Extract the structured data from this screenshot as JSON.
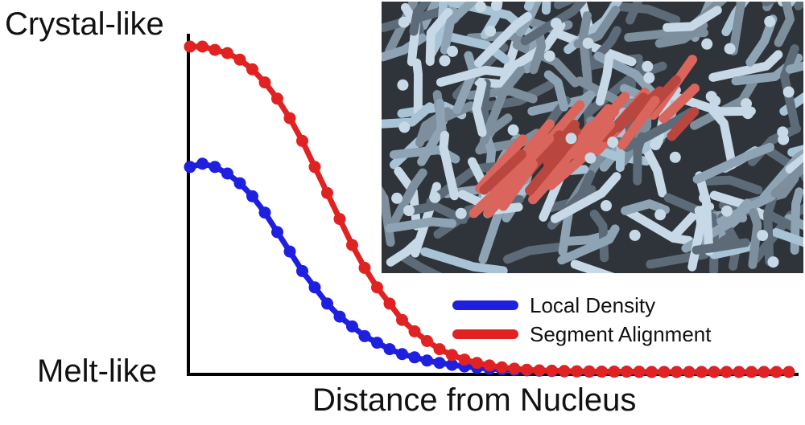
{
  "chart_data": {
    "type": "line",
    "title": "",
    "xlabel": "Distance from Nucleus",
    "ylabel": "",
    "y_tick_labels": {
      "top": "Crystal-like",
      "bottom": "Melt-like"
    },
    "xlim": [
      0,
      48
    ],
    "ylim": [
      0,
      1
    ],
    "grid": false,
    "legend_placement": "right",
    "x": [
      0,
      1,
      2,
      3,
      4,
      5,
      6,
      7,
      8,
      9,
      10,
      11,
      12,
      13,
      14,
      15,
      16,
      17,
      18,
      19,
      20,
      21,
      22,
      23,
      24,
      25,
      26,
      27,
      28,
      29,
      30,
      31,
      32,
      33,
      34,
      35,
      36,
      37,
      38,
      39,
      40,
      41,
      42,
      43,
      44,
      45,
      46,
      47,
      48
    ],
    "series": [
      {
        "name": "Local Density",
        "color": "#1f1fe0",
        "values": [
          0.63,
          0.64,
          0.63,
          0.61,
          0.58,
          0.54,
          0.49,
          0.43,
          0.37,
          0.31,
          0.26,
          0.21,
          0.17,
          0.14,
          0.11,
          0.09,
          0.07,
          0.055,
          0.045,
          0.035,
          0.028,
          0.022,
          0.017,
          0.013,
          0.01,
          0.008,
          0.006,
          0.005,
          0.004,
          0.003,
          0.002,
          0.002,
          0.001,
          0.001,
          0.001,
          0.001,
          0.0,
          0.0,
          0.0,
          0.0,
          0.0,
          0.0,
          0.0,
          0.0,
          0.0,
          0.0,
          0.0,
          0.0,
          0.0
        ]
      },
      {
        "name": "Segment Alignment",
        "color": "#e02222",
        "values": [
          1.0,
          1.0,
          0.99,
          0.98,
          0.96,
          0.93,
          0.89,
          0.84,
          0.78,
          0.71,
          0.63,
          0.55,
          0.47,
          0.39,
          0.32,
          0.26,
          0.21,
          0.16,
          0.125,
          0.095,
          0.07,
          0.052,
          0.038,
          0.028,
          0.02,
          0.014,
          0.01,
          0.007,
          0.005,
          0.004,
          0.003,
          0.002,
          0.002,
          0.001,
          0.001,
          0.001,
          0.001,
          0.0,
          0.0,
          0.0,
          0.0,
          0.0,
          0.0,
          0.0,
          0.0,
          0.0,
          0.0,
          0.0,
          0.0
        ]
      }
    ]
  },
  "inset": {
    "description_icon": "polymer-snapshot-image",
    "colors": {
      "background": "#2e343a",
      "melt_chains": "#a9c3d6",
      "crystal_chains": "#d9655c"
    }
  }
}
